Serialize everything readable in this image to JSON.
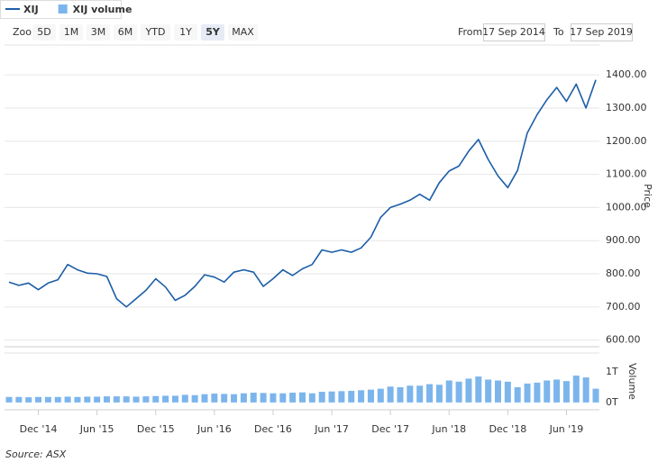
{
  "legend_corner": "top-left",
  "toolbar": {
    "zoom_label": "Zoom",
    "buttons": [
      "5D",
      "1M",
      "3M",
      "6M",
      "YTD",
      "1Y",
      "5Y",
      "MAX"
    ],
    "active_button": 6,
    "from_label": "From",
    "from": "17 Sep 2014",
    "to_label": "To",
    "to": "17 Sep 2019"
  },
  "source": "Source: ASX",
  "chart_data": [
    {
      "type": "line",
      "y_label": "Price",
      "grid": true,
      "series": [
        {
          "name": "XIJ",
          "color": "#1c5ea8",
          "values": [
            775,
            765,
            772,
            752,
            772,
            782,
            828,
            812,
            802,
            800,
            792,
            725,
            700,
            725,
            750,
            785,
            760,
            720,
            735,
            762,
            797,
            790,
            775,
            805,
            812,
            805,
            762,
            785,
            812,
            795,
            815,
            828,
            872,
            865,
            872,
            865,
            878,
            910,
            970,
            1000,
            1010,
            1022,
            1040,
            1022,
            1075,
            1110,
            1125,
            1170,
            1205,
            1145,
            1095,
            1060,
            1112,
            1225,
            1280,
            1325,
            1362,
            1320,
            1372,
            1300,
            1385
          ]
        }
      ],
      "ylim": [
        580,
        1490
      ],
      "yticks": [
        {
          "value": 600,
          "label": "600.00"
        },
        {
          "value": 700,
          "label": "700.00"
        },
        {
          "value": 800,
          "label": "800.00"
        },
        {
          "value": 900,
          "label": "900.00"
        },
        {
          "value": 1000,
          "label": "1000.00"
        },
        {
          "value": 1100,
          "label": "1100.00"
        },
        {
          "value": 1200,
          "label": "1200.00"
        },
        {
          "value": 1300,
          "label": "1300.00"
        },
        {
          "value": 1400,
          "label": "1400.00"
        }
      ]
    },
    {
      "type": "bar",
      "y_label": "Volume",
      "categories": [
        null,
        null,
        null,
        "Dec '14",
        null,
        null,
        null,
        null,
        null,
        "Jun '15",
        null,
        null,
        null,
        null,
        null,
        "Dec '15",
        null,
        null,
        null,
        null,
        null,
        "Jun '16",
        null,
        null,
        null,
        null,
        null,
        "Dec '16",
        null,
        null,
        null,
        null,
        null,
        "Jun '17",
        null,
        null,
        null,
        null,
        null,
        "Dec '17",
        null,
        null,
        null,
        null,
        null,
        "Jun '18",
        null,
        null,
        null,
        null,
        null,
        "Dec '18",
        null,
        null,
        null,
        null,
        null,
        "Jun '19",
        null,
        null,
        null
      ],
      "series": [
        {
          "name": "XIJ volume",
          "color": "#7cb5ec",
          "values": [
            0.18,
            0.18,
            0.17,
            0.18,
            0.18,
            0.18,
            0.19,
            0.18,
            0.19,
            0.19,
            0.2,
            0.2,
            0.2,
            0.19,
            0.2,
            0.21,
            0.22,
            0.22,
            0.25,
            0.24,
            0.27,
            0.29,
            0.28,
            0.27,
            0.3,
            0.32,
            0.31,
            0.3,
            0.3,
            0.32,
            0.33,
            0.3,
            0.35,
            0.36,
            0.37,
            0.38,
            0.4,
            0.42,
            0.45,
            0.52,
            0.5,
            0.55,
            0.55,
            0.6,
            0.58,
            0.72,
            0.68,
            0.78,
            0.85,
            0.75,
            0.72,
            0.68,
            0.5,
            0.62,
            0.65,
            0.72,
            0.75,
            0.7,
            0.88,
            0.82,
            0.45
          ]
        }
      ],
      "ylim": [
        -0.24,
        1.62
      ],
      "yticks": [
        {
          "value": 0,
          "label": "0T"
        },
        {
          "value": 1,
          "label": "1T"
        }
      ]
    }
  ]
}
